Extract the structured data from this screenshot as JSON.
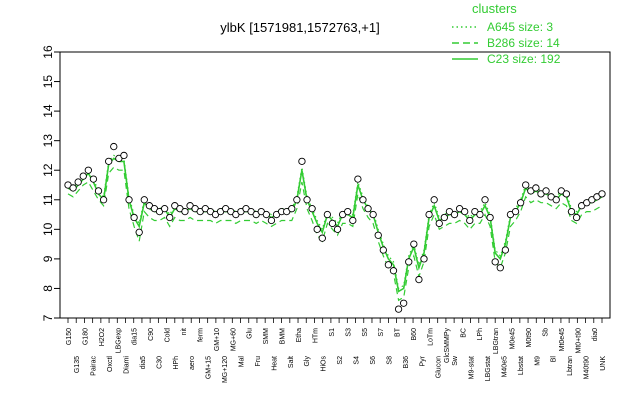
{
  "chart_data": {
    "type": "line",
    "title": "ylbK [1571981,1572763,+1]",
    "xlabel": "",
    "ylabel": "",
    "ylim": [
      7,
      16
    ],
    "yticks": [
      7,
      8,
      9,
      10,
      11,
      12,
      13,
      14,
      15,
      16
    ],
    "grid": false,
    "legend": {
      "title": "clusters",
      "placement": "top-right",
      "entries": [
        {
          "label": "A645 size: 3",
          "style": "dotted"
        },
        {
          "label": "B286 size: 14",
          "style": "dashed"
        },
        {
          "label": "C23 size: 192",
          "style": "solid"
        }
      ]
    },
    "colors": {
      "series": "#33cc33",
      "points": "#000000",
      "title": "#000000"
    },
    "x_tick_labels": [
      "G150",
      "G135",
      "G180",
      "Pairac",
      "H2O2",
      "Oxctl",
      "LBGexp",
      "Diami",
      "dia15",
      "dia5",
      "C90",
      "C30",
      "Cold",
      "HPh",
      "nit",
      "aero",
      "ferm",
      "GM+15",
      "GM+10",
      "MG+120",
      "MG+60",
      "Mal",
      "Glu",
      "Fru",
      "SMM",
      "Heat",
      "BMM",
      "Salt",
      "Etha",
      "Gly",
      "HTm",
      "HiOs",
      "S1",
      "S2",
      "S3",
      "S4",
      "S5",
      "S6",
      "S7",
      "S8",
      "BT",
      "B36",
      "B60",
      "Pyr",
      "LoTm",
      "Glucon",
      "GlcSMMPy",
      "Sw",
      "BC",
      "M9-stat",
      "LPh",
      "LBGstat",
      "LBGtran",
      "M40e5",
      "M0e45",
      "Lbstat",
      "M0t90",
      "M9",
      "Sb",
      "Bl",
      "Mt0e45",
      "Lbtran",
      "Mt0+t90",
      "M40t90",
      "dia0",
      "UNK"
    ],
    "points": [
      {
        "x": 1,
        "y": 11.5
      },
      {
        "x": 2,
        "y": 11.4
      },
      {
        "x": 3,
        "y": 11.6
      },
      {
        "x": 4,
        "y": 11.8
      },
      {
        "x": 5,
        "y": 12.0
      },
      {
        "x": 6,
        "y": 11.7
      },
      {
        "x": 7,
        "y": 11.3
      },
      {
        "x": 8,
        "y": 11.0
      },
      {
        "x": 9,
        "y": 12.3
      },
      {
        "x": 10,
        "y": 12.8
      },
      {
        "x": 11,
        "y": 12.4
      },
      {
        "x": 12,
        "y": 12.5
      },
      {
        "x": 13,
        "y": 11.0
      },
      {
        "x": 14,
        "y": 10.4
      },
      {
        "x": 15,
        "y": 9.9
      },
      {
        "x": 16,
        "y": 11.0
      },
      {
        "x": 17,
        "y": 10.8
      },
      {
        "x": 18,
        "y": 10.7
      },
      {
        "x": 19,
        "y": 10.6
      },
      {
        "x": 20,
        "y": 10.7
      },
      {
        "x": 21,
        "y": 10.4
      },
      {
        "x": 22,
        "y": 10.8
      },
      {
        "x": 23,
        "y": 10.7
      },
      {
        "x": 24,
        "y": 10.6
      },
      {
        "x": 25,
        "y": 10.8
      },
      {
        "x": 26,
        "y": 10.7
      },
      {
        "x": 27,
        "y": 10.6
      },
      {
        "x": 28,
        "y": 10.7
      },
      {
        "x": 29,
        "y": 10.6
      },
      {
        "x": 30,
        "y": 10.5
      },
      {
        "x": 31,
        "y": 10.6
      },
      {
        "x": 32,
        "y": 10.7
      },
      {
        "x": 33,
        "y": 10.6
      },
      {
        "x": 34,
        "y": 10.5
      },
      {
        "x": 35,
        "y": 10.6
      },
      {
        "x": 36,
        "y": 10.7
      },
      {
        "x": 37,
        "y": 10.6
      },
      {
        "x": 38,
        "y": 10.5
      },
      {
        "x": 39,
        "y": 10.6
      },
      {
        "x": 40,
        "y": 10.5
      },
      {
        "x": 41,
        "y": 10.3
      },
      {
        "x": 42,
        "y": 10.5
      },
      {
        "x": 43,
        "y": 10.6
      },
      {
        "x": 44,
        "y": 10.6
      },
      {
        "x": 45,
        "y": 10.7
      },
      {
        "x": 46,
        "y": 11.0
      },
      {
        "x": 47,
        "y": 12.3
      },
      {
        "x": 48,
        "y": 11.0
      },
      {
        "x": 49,
        "y": 10.7
      },
      {
        "x": 50,
        "y": 10.0
      },
      {
        "x": 51,
        "y": 9.7
      },
      {
        "x": 52,
        "y": 10.5
      },
      {
        "x": 53,
        "y": 10.2
      },
      {
        "x": 54,
        "y": 10.0
      },
      {
        "x": 55,
        "y": 10.5
      },
      {
        "x": 56,
        "y": 10.6
      },
      {
        "x": 57,
        "y": 10.3
      },
      {
        "x": 58,
        "y": 11.7
      },
      {
        "x": 59,
        "y": 11.0
      },
      {
        "x": 60,
        "y": 10.7
      },
      {
        "x": 61,
        "y": 10.5
      },
      {
        "x": 62,
        "y": 9.8
      },
      {
        "x": 63,
        "y": 9.3
      },
      {
        "x": 64,
        "y": 8.8
      },
      {
        "x": 65,
        "y": 8.6
      },
      {
        "x": 66,
        "y": 7.3
      },
      {
        "x": 67,
        "y": 7.5
      },
      {
        "x": 68,
        "y": 8.9
      },
      {
        "x": 69,
        "y": 9.5
      },
      {
        "x": 70,
        "y": 8.3
      },
      {
        "x": 71,
        "y": 9.0
      },
      {
        "x": 72,
        "y": 10.5
      },
      {
        "x": 73,
        "y": 11.0
      },
      {
        "x": 74,
        "y": 10.2
      },
      {
        "x": 75,
        "y": 10.4
      },
      {
        "x": 76,
        "y": 10.6
      },
      {
        "x": 77,
        "y": 10.5
      },
      {
        "x": 78,
        "y": 10.7
      },
      {
        "x": 79,
        "y": 10.6
      },
      {
        "x": 80,
        "y": 10.3
      },
      {
        "x": 81,
        "y": 10.6
      },
      {
        "x": 82,
        "y": 10.5
      },
      {
        "x": 83,
        "y": 11.0
      },
      {
        "x": 84,
        "y": 10.4
      },
      {
        "x": 85,
        "y": 8.9
      },
      {
        "x": 86,
        "y": 8.7
      },
      {
        "x": 87,
        "y": 9.3
      },
      {
        "x": 88,
        "y": 10.5
      },
      {
        "x": 89,
        "y": 10.6
      },
      {
        "x": 90,
        "y": 10.9
      },
      {
        "x": 91,
        "y": 11.5
      },
      {
        "x": 92,
        "y": 11.3
      },
      {
        "x": 93,
        "y": 11.4
      },
      {
        "x": 94,
        "y": 11.2
      },
      {
        "x": 95,
        "y": 11.3
      },
      {
        "x": 96,
        "y": 11.1
      },
      {
        "x": 97,
        "y": 11.0
      },
      {
        "x": 98,
        "y": 11.3
      },
      {
        "x": 99,
        "y": 11.2
      },
      {
        "x": 100,
        "y": 10.6
      },
      {
        "x": 101,
        "y": 10.4
      },
      {
        "x": 102,
        "y": 10.8
      },
      {
        "x": 103,
        "y": 10.9
      },
      {
        "x": 104,
        "y": 11.0
      },
      {
        "x": 105,
        "y": 11.1
      },
      {
        "x": 106,
        "y": 11.2
      }
    ],
    "series": [
      {
        "style": "solid",
        "values": [
          11.4,
          11.3,
          11.5,
          11.7,
          11.9,
          11.6,
          11.2,
          11.0,
          12.2,
          12.4,
          12.3,
          12.3,
          11.0,
          10.4,
          10.1,
          10.9,
          10.7,
          10.6,
          10.6,
          10.7,
          10.4,
          10.7,
          10.6,
          10.6,
          10.7,
          10.6,
          10.6,
          10.6,
          10.6,
          10.5,
          10.6,
          10.6,
          10.6,
          10.5,
          10.6,
          10.6,
          10.6,
          10.5,
          10.6,
          10.5,
          10.4,
          10.5,
          10.6,
          10.6,
          10.6,
          11.0,
          12.0,
          11.0,
          10.6,
          10.2,
          9.9,
          10.5,
          10.3,
          10.1,
          10.5,
          10.5,
          10.4,
          11.5,
          11.0,
          10.7,
          10.5,
          9.9,
          9.4,
          9.0,
          8.8,
          7.9,
          8.0,
          9.0,
          9.4,
          8.7,
          9.2,
          10.4,
          10.8,
          10.3,
          10.4,
          10.5,
          10.5,
          10.6,
          10.5,
          10.3,
          10.5,
          10.5,
          10.8,
          10.4,
          9.2,
          9.0,
          9.5,
          10.4,
          10.6,
          10.9,
          11.4,
          11.2,
          11.3,
          11.2,
          11.2,
          11.1,
          11.0,
          11.2,
          11.1,
          10.6,
          10.5,
          10.8,
          10.9,
          10.9,
          11.0,
          11.1
        ]
      },
      {
        "style": "dashed",
        "values": [
          11.2,
          11.1,
          11.3,
          11.5,
          11.6,
          11.3,
          11.0,
          10.8,
          11.9,
          12.1,
          12.0,
          12.0,
          10.7,
          10.1,
          9.6,
          10.6,
          10.4,
          10.3,
          10.3,
          10.4,
          10.1,
          10.4,
          10.3,
          10.3,
          10.4,
          10.3,
          10.3,
          10.3,
          10.3,
          10.2,
          10.3,
          10.3,
          10.3,
          10.2,
          10.3,
          10.3,
          10.3,
          10.2,
          10.3,
          10.2,
          10.1,
          10.2,
          10.3,
          10.3,
          10.3,
          10.7,
          11.6,
          10.7,
          10.3,
          9.8,
          9.6,
          10.2,
          10.0,
          9.8,
          10.2,
          10.2,
          10.1,
          11.2,
          10.7,
          10.4,
          10.2,
          9.6,
          9.1,
          8.7,
          8.5,
          7.6,
          7.7,
          8.7,
          9.1,
          8.4,
          8.9,
          10.1,
          10.5,
          10.0,
          10.1,
          10.2,
          10.2,
          10.3,
          10.2,
          10.0,
          10.2,
          10.2,
          10.5,
          10.1,
          8.9,
          8.7,
          9.2,
          10.1,
          10.3,
          10.6,
          11.1,
          10.9,
          11.0,
          10.9,
          10.9,
          10.8,
          10.7,
          10.9,
          10.8,
          10.3,
          10.2,
          10.5,
          10.6,
          10.6,
          10.7,
          10.8
        ]
      },
      {
        "style": "dotted",
        "values": [
          11.5,
          11.4,
          11.6,
          11.8,
          12.0,
          11.7,
          11.3,
          11.1,
          12.3,
          12.5,
          12.4,
          12.4,
          11.1,
          10.5,
          10.2,
          11.0,
          10.8,
          10.7,
          10.7,
          10.8,
          10.5,
          10.8,
          10.7,
          10.7,
          10.8,
          10.7,
          10.7,
          10.7,
          10.7,
          10.6,
          10.7,
          10.7,
          10.7,
          10.6,
          10.7,
          10.7,
          10.7,
          10.6,
          10.7,
          10.6,
          10.5,
          10.6,
          10.7,
          10.7,
          10.7,
          11.1,
          12.1,
          11.1,
          10.7,
          10.3,
          10.0,
          10.6,
          10.4,
          10.2,
          10.6,
          10.6,
          10.5,
          11.6,
          11.1,
          10.8,
          10.6,
          10.0,
          9.5,
          9.1,
          8.9,
          8.0,
          8.1,
          9.1,
          9.5,
          8.8,
          9.3,
          10.5,
          10.9,
          10.4,
          10.5,
          10.6,
          10.6,
          10.7,
          10.6,
          10.4,
          10.6,
          10.6,
          10.9,
          10.5,
          9.3,
          9.1,
          9.6,
          10.5,
          10.7,
          11.0,
          11.5,
          11.3,
          11.4,
          11.3,
          11.3,
          11.2,
          11.1,
          11.3,
          11.2,
          10.7,
          10.6,
          10.9,
          11.0,
          11.0,
          11.1,
          11.2
        ]
      }
    ]
  }
}
